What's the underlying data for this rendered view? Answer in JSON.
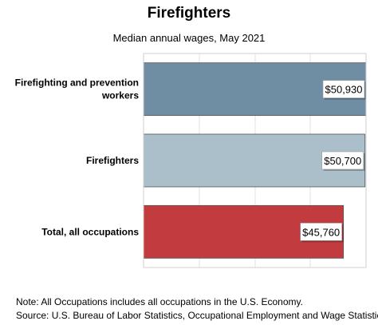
{
  "chart_data": {
    "type": "bar",
    "orientation": "horizontal",
    "title": "Firefighters",
    "subtitle": "Median annual wages, May 2021",
    "categories": [
      [
        "Firefighting and prevention",
        "workers"
      ],
      [
        "Firefighters"
      ],
      [
        "Total, all occupations"
      ]
    ],
    "values": [
      50930,
      50700,
      45760
    ],
    "value_labels": [
      "$50,930",
      "$50,700",
      "$45,760"
    ],
    "colors": [
      "#6f8da3",
      "#abbfcb",
      "#c23b3f"
    ],
    "xlim": [
      0,
      50930
    ],
    "grid": true,
    "legend": "none"
  },
  "notes": {
    "note": "Note: All Occupations includes all occupations in the U.S. Economy.",
    "source": "Source: U.S. Bureau of Labor Statistics, Occupational Employment and Wage Statistics"
  }
}
